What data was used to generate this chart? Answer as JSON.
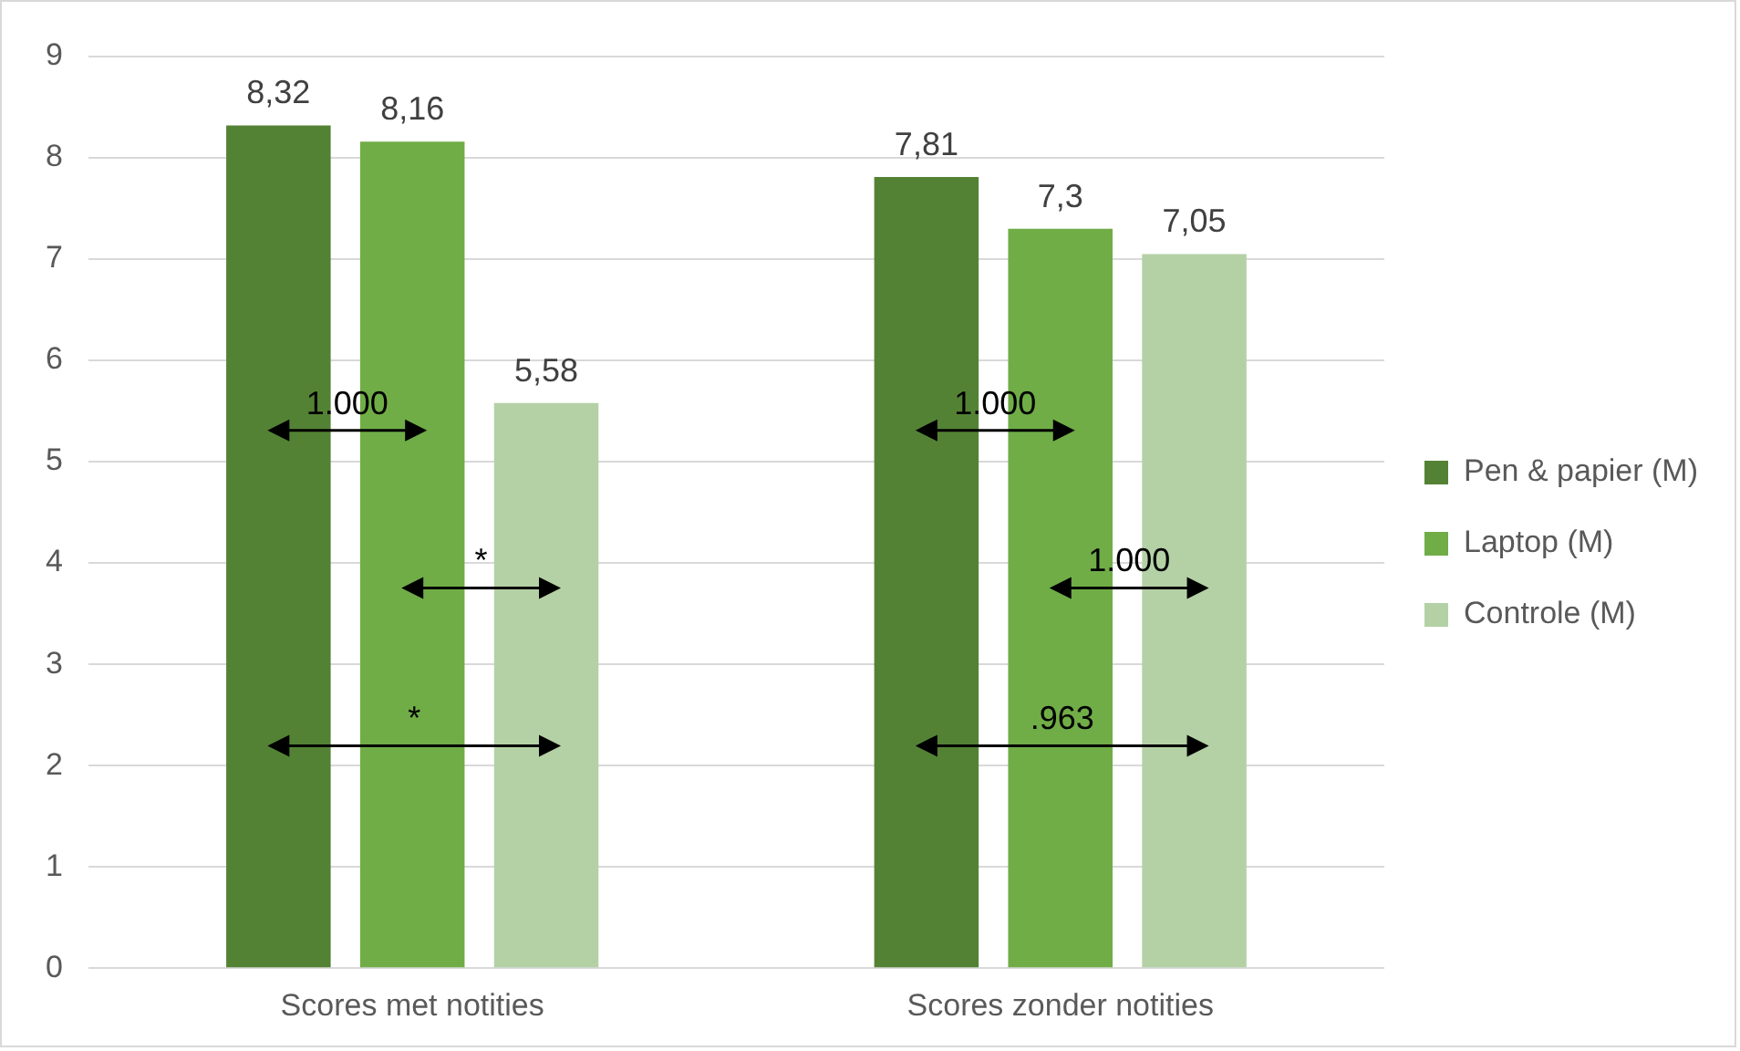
{
  "chart_data": {
    "type": "bar",
    "categories": [
      "Scores met notities",
      "Scores zonder notities"
    ],
    "series": [
      {
        "name": "Pen & papier (M)",
        "color": "#548235",
        "values": [
          8.32,
          7.81
        ],
        "value_labels": [
          "8,32",
          "7,81"
        ]
      },
      {
        "name": "Laptop (M)",
        "color": "#70ad47",
        "values": [
          8.16,
          7.3
        ],
        "value_labels": [
          "8,16",
          "7,3"
        ]
      },
      {
        "name": "Controle (M)",
        "color": "#b4d1a6",
        "values": [
          5.58,
          7.05
        ],
        "value_labels": [
          "5,58",
          "7,05"
        ]
      }
    ],
    "ylim": [
      0,
      9
    ],
    "yticks": [
      0,
      1,
      2,
      3,
      4,
      5,
      6,
      7,
      8,
      9
    ],
    "grid": "y",
    "legend": "right",
    "annotations": [
      "1.000",
      "*",
      "*",
      "1.000",
      "1.000",
      ".963"
    ]
  }
}
